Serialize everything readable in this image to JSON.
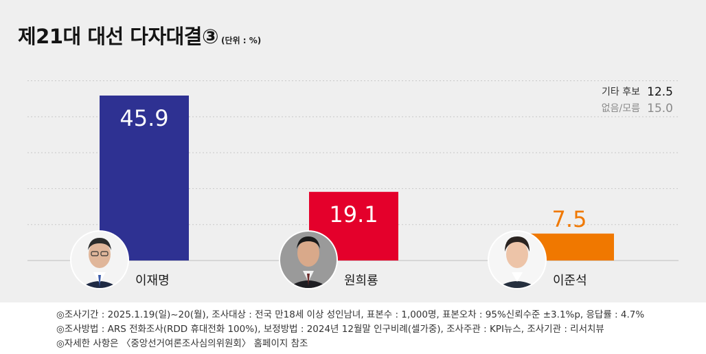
{
  "header": {
    "title": "제21대 대선 다자대결③",
    "unit": "(단위 : %)"
  },
  "chart_data": {
    "type": "bar",
    "categories": [
      "이재명",
      "원희룡",
      "이준석"
    ],
    "values": [
      45.9,
      19.1,
      7.5
    ],
    "value_labels": [
      "45.9",
      "19.1",
      "7.5"
    ],
    "colors": [
      "#2e3192",
      "#e4002b",
      "#f07800"
    ],
    "ylim": [
      0,
      50
    ],
    "grid": true,
    "xlabel": "",
    "ylabel": "",
    "other_responses": [
      {
        "label": "기타 후보",
        "value": 12.5
      },
      {
        "label": "없음/모름",
        "value": 15.0
      }
    ]
  },
  "other_box": {
    "rows": [
      {
        "label": "기타 후보",
        "value": "12.5"
      },
      {
        "label": "없음/모름",
        "value": "15.0"
      }
    ]
  },
  "footer": {
    "line1": "◎조사기간 : 2025.1.19(일)~20(월), 조사대상 : 전국 만18세 이상 성인남녀, 표본수 : 1,000명, 표본오차 : 95%신뢰수준 ±3.1%p, 응답률 : 4.7%",
    "line2": "◎조사방법 : ARS 전화조사(RDD 휴대전화 100%), 보정방법 : 2024년 12월말 인구비례(셀가중), 조사주관 : KPI뉴스, 조사기관 : 리서치뷰",
    "line3": "◎자세한 사항은 〈중앙선거여론조사심의위원회〉 홈페이지 참조"
  }
}
